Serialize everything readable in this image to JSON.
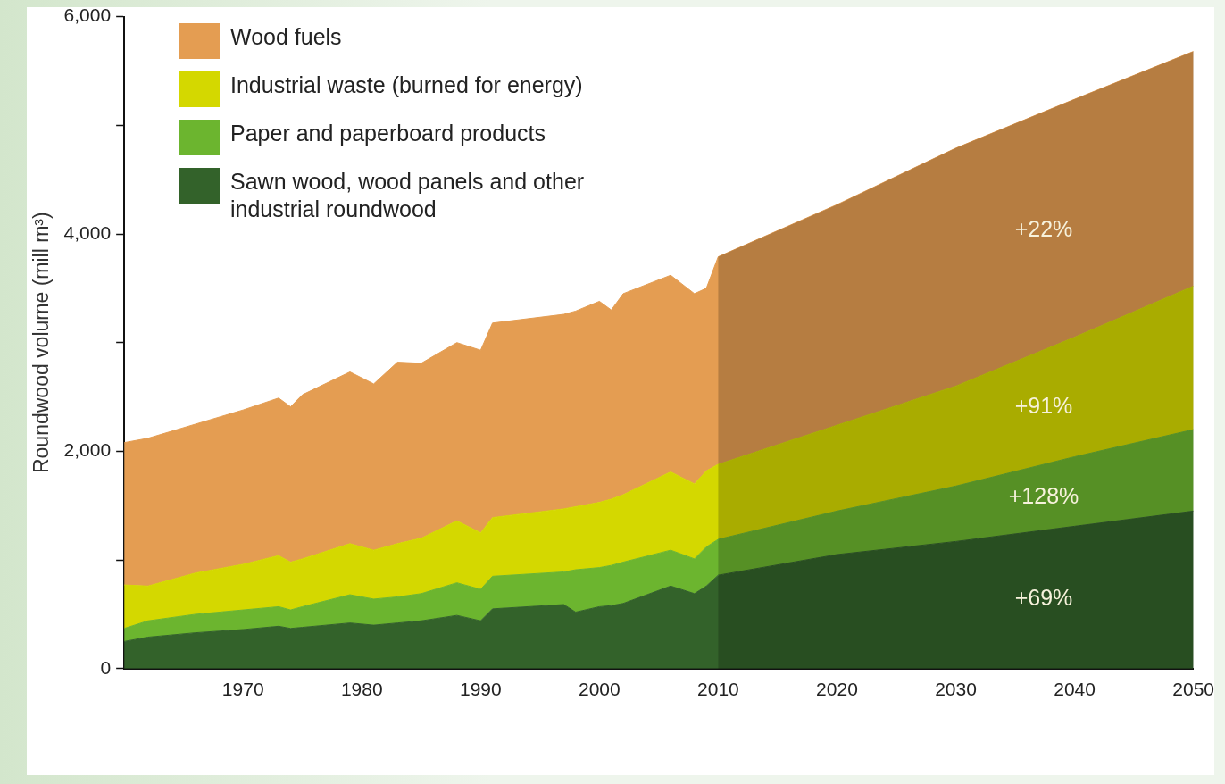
{
  "chart_data": {
    "type": "area",
    "ylabel": "Roundwood volume (mill m³)",
    "x": [
      1960,
      1962,
      1966,
      1970,
      1973,
      1974,
      1975,
      1979,
      1981,
      1983,
      1985,
      1988,
      1990,
      1991,
      1997,
      1998,
      2000,
      2001,
      2002,
      2006,
      2008,
      2009,
      2010,
      2020,
      2030,
      2040,
      2050
    ],
    "series": [
      {
        "name": "Sawn wood, wood panels and other industrial roundwood",
        "color": "#33622a",
        "values": [
          250,
          290,
          330,
          360,
          390,
          370,
          380,
          420,
          400,
          420,
          440,
          490,
          440,
          550,
          590,
          520,
          570,
          580,
          600,
          760,
          690,
          760,
          860,
          1050,
          1170,
          1310,
          1450
        ]
      },
      {
        "name": "Paper and paperboard products",
        "color": "#6cb52f",
        "values": [
          120,
          150,
          170,
          180,
          180,
          170,
          190,
          260,
          240,
          240,
          250,
          300,
          290,
          300,
          300,
          390,
          360,
          370,
          380,
          330,
          320,
          360,
          330,
          400,
          510,
          640,
          750
        ]
      },
      {
        "name": "Industrial waste (burned for energy)",
        "color": "#d4d800",
        "values": [
          400,
          320,
          380,
          420,
          470,
          440,
          440,
          470,
          450,
          490,
          510,
          570,
          520,
          540,
          580,
          580,
          600,
          610,
          620,
          720,
          690,
          700,
          690,
          790,
          920,
          1100,
          1320
        ]
      },
      {
        "name": "Wood fuels",
        "color": "#e49d52",
        "values": [
          1310,
          1360,
          1370,
          1420,
          1450,
          1430,
          1510,
          1580,
          1530,
          1670,
          1610,
          1640,
          1680,
          1790,
          1790,
          1800,
          1850,
          1740,
          1850,
          1810,
          1750,
          1680,
          1910,
          2030,
          2190,
          2190,
          2160
        ]
      }
    ],
    "stacked": true,
    "marker": "none",
    "xlim": [
      1960,
      2050
    ],
    "xticks": [
      1970,
      1980,
      1990,
      2000,
      2010,
      2020,
      2030,
      2040,
      2050
    ],
    "ylim": [
      0,
      6000
    ],
    "yticks": [
      0,
      {
        "value": 1000,
        "label": null
      },
      {
        "value": 2000,
        "label": "2,000"
      },
      {
        "value": 3000,
        "label": null
      },
      {
        "value": 4000,
        "label": "4,000"
      },
      {
        "value": 5000,
        "label": null
      },
      {
        "value": 6000,
        "label": "6,000"
      }
    ],
    "bands": [
      {
        "axis": "x",
        "from": 2010,
        "to": 2050,
        "color": "#000000"
      }
    ],
    "legend": "top left",
    "annotations": [
      "+22%",
      "+91%",
      "+128%",
      "+69%"
    ]
  }
}
